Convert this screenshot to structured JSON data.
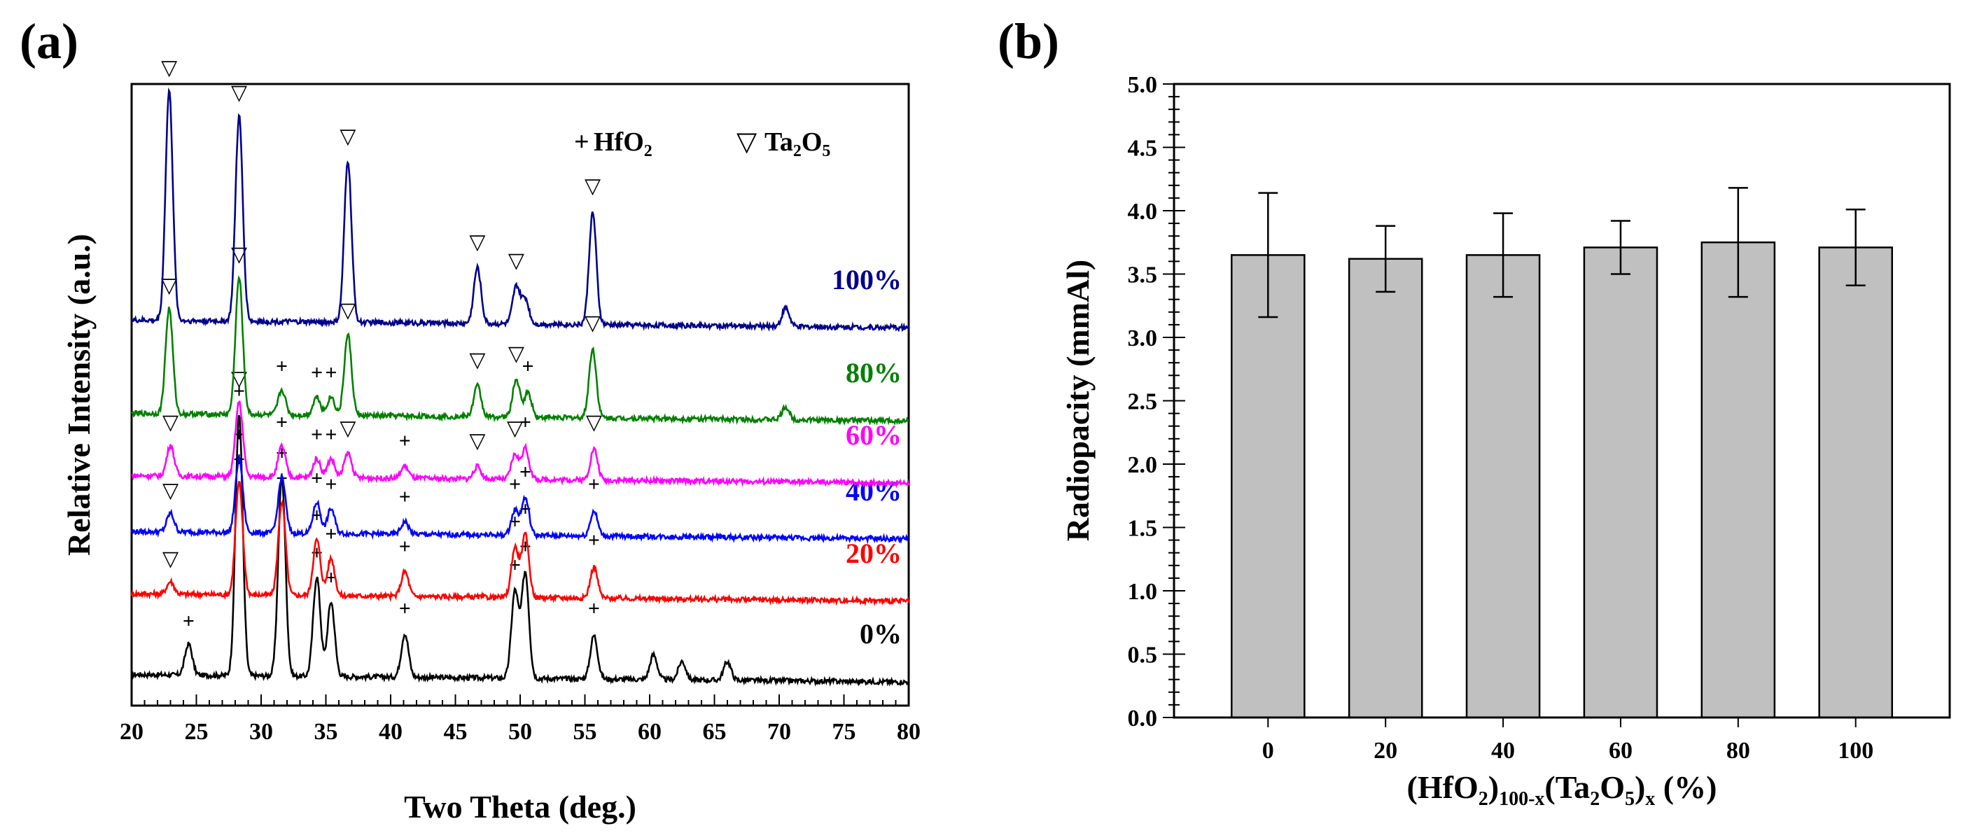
{
  "panels": {
    "a_label": "(a)",
    "b_label": "(b)"
  },
  "chart_data": [
    {
      "type": "line",
      "xlabel": "Two Theta (deg.)",
      "ylabel": "Relative Intensity (a.u.)",
      "xlim": [
        20,
        80
      ],
      "x_ticks": [
        "20",
        "25",
        "30",
        "35",
        "40",
        "45",
        "50",
        "55",
        "60",
        "65",
        "70",
        "75",
        "80"
      ],
      "legend": [
        {
          "symbol": "+",
          "label_main": "HfO",
          "label_sub": "2"
        },
        {
          "symbol": "▽",
          "label_main": "Ta",
          "label_sub": "2",
          "label_main2": "O",
          "label_sub2": "5"
        }
      ],
      "series": [
        {
          "name": "0%",
          "color": "#000000",
          "baseline": 0.05,
          "peaks": [
            [
              24.4,
              0.05
            ],
            [
              28.3,
              0.42
            ],
            [
              31.6,
              0.32
            ],
            [
              34.3,
              0.16
            ],
            [
              35.4,
              0.12
            ],
            [
              41.1,
              0.07
            ],
            [
              49.6,
              0.14
            ],
            [
              50.4,
              0.17
            ],
            [
              55.7,
              0.07
            ],
            [
              60.3,
              0.04
            ],
            [
              62.5,
              0.03
            ],
            [
              66.0,
              0.03
            ]
          ],
          "markers": [
            [
              "+",
              24.4
            ],
            [
              "+",
              28.3
            ],
            [
              "+",
              31.6
            ],
            [
              "+",
              34.3
            ],
            [
              "+",
              35.4
            ],
            [
              "+",
              41.1
            ],
            [
              "+",
              49.6
            ],
            [
              "+",
              50.4
            ],
            [
              "+",
              55.7
            ]
          ]
        },
        {
          "name": "20%",
          "color": "#ff0000",
          "baseline": 0.18,
          "peaks": [
            [
              23.0,
              0.02
            ],
            [
              28.3,
              0.18
            ],
            [
              31.6,
              0.15
            ],
            [
              34.3,
              0.09
            ],
            [
              35.4,
              0.06
            ],
            [
              41.1,
              0.04
            ],
            [
              49.6,
              0.08
            ],
            [
              50.4,
              0.1
            ],
            [
              55.7,
              0.05
            ]
          ],
          "markers": [
            [
              "▽",
              23.0
            ],
            [
              "+",
              28.3
            ],
            [
              "+",
              31.6
            ],
            [
              "+",
              34.3
            ],
            [
              "+",
              35.4
            ],
            [
              "+",
              41.1
            ],
            [
              "+",
              49.6
            ],
            [
              "+",
              50.4
            ],
            [
              "+",
              55.7
            ]
          ]
        },
        {
          "name": "40%",
          "color": "#0000ff",
          "baseline": 0.28,
          "peaks": [
            [
              23.0,
              0.03
            ],
            [
              28.3,
              0.12
            ],
            [
              31.6,
              0.09
            ],
            [
              34.3,
              0.05
            ],
            [
              35.4,
              0.04
            ],
            [
              41.1,
              0.02
            ],
            [
              49.6,
              0.04
            ],
            [
              50.4,
              0.06
            ],
            [
              55.7,
              0.04
            ]
          ],
          "markers": [
            [
              "▽",
              23.0
            ],
            [
              "+",
              28.3
            ],
            [
              "+",
              31.6
            ],
            [
              "+",
              34.3
            ],
            [
              "+",
              35.4
            ],
            [
              "+",
              41.1
            ],
            [
              "+",
              49.6
            ],
            [
              "+",
              50.4
            ],
            [
              "+",
              55.7
            ]
          ]
        },
        {
          "name": "60%",
          "color": "#ff00ff",
          "baseline": 0.37,
          "peaks": [
            [
              23.0,
              0.05
            ],
            [
              28.3,
              0.12
            ],
            [
              31.6,
              0.05
            ],
            [
              34.3,
              0.03
            ],
            [
              35.4,
              0.03
            ],
            [
              36.7,
              0.04
            ],
            [
              41.1,
              0.02
            ],
            [
              46.7,
              0.02
            ],
            [
              49.6,
              0.04
            ],
            [
              50.4,
              0.05
            ],
            [
              55.7,
              0.05
            ]
          ],
          "markers": [
            [
              "▽",
              23.0
            ],
            [
              "▽",
              28.3
            ],
            [
              "+",
              31.6
            ],
            [
              "+",
              34.3
            ],
            [
              "+",
              35.4
            ],
            [
              "▽",
              36.7
            ],
            [
              "+",
              41.1
            ],
            [
              "▽",
              46.7
            ],
            [
              "▽",
              49.6
            ],
            [
              "+",
              50.4
            ],
            [
              "▽",
              55.7
            ]
          ]
        },
        {
          "name": "80%",
          "color": "#008000",
          "baseline": 0.47,
          "peaks": [
            [
              22.9,
              0.17
            ],
            [
              28.3,
              0.22
            ],
            [
              31.6,
              0.04
            ],
            [
              34.3,
              0.03
            ],
            [
              35.4,
              0.03
            ],
            [
              36.7,
              0.13
            ],
            [
              46.7,
              0.05
            ],
            [
              49.7,
              0.06
            ],
            [
              50.6,
              0.04
            ],
            [
              55.6,
              0.11
            ],
            [
              70.5,
              0.02
            ]
          ],
          "markers": [
            [
              "▽",
              22.9
            ],
            [
              "▽",
              28.3
            ],
            [
              "+",
              31.6
            ],
            [
              "+",
              34.3
            ],
            [
              "+",
              35.4
            ],
            [
              "▽",
              36.7
            ],
            [
              "▽",
              46.7
            ],
            [
              "▽",
              49.7
            ],
            [
              "+",
              50.6
            ],
            [
              "▽",
              55.6
            ]
          ]
        },
        {
          "name": "100%",
          "color": "#00008b",
          "baseline": 0.62,
          "peaks": [
            [
              22.9,
              0.37
            ],
            [
              28.3,
              0.33
            ],
            [
              36.7,
              0.26
            ],
            [
              46.7,
              0.09
            ],
            [
              49.7,
              0.06
            ],
            [
              50.4,
              0.04
            ],
            [
              55.6,
              0.18
            ],
            [
              70.5,
              0.03
            ]
          ],
          "markers": [
            [
              "▽",
              22.9
            ],
            [
              "▽",
              28.3
            ],
            [
              "▽",
              36.7
            ],
            [
              "▽",
              46.7
            ],
            [
              "▽",
              49.7
            ],
            [
              "▽",
              55.6
            ]
          ]
        }
      ]
    },
    {
      "type": "bar",
      "xlabel_parts": [
        "(HfO",
        "2",
        ")",
        "100-x",
        "(Ta",
        "2",
        "O",
        "5",
        ")",
        "x",
        " (%)"
      ],
      "ylabel": "Radiopacity (mmAl)",
      "ylim": [
        0,
        5.0
      ],
      "y_ticks": [
        "0.0",
        "0.5",
        "1.0",
        "1.5",
        "2.0",
        "2.5",
        "3.0",
        "3.5",
        "4.0",
        "4.5",
        "5.0"
      ],
      "categories": [
        "0",
        "20",
        "40",
        "60",
        "80",
        "100"
      ],
      "values": [
        3.65,
        3.62,
        3.65,
        3.71,
        3.75,
        3.71
      ],
      "errors": [
        0.49,
        0.26,
        0.33,
        0.21,
        0.43,
        0.3
      ],
      "bar_color": "#c0c0c0"
    }
  ]
}
